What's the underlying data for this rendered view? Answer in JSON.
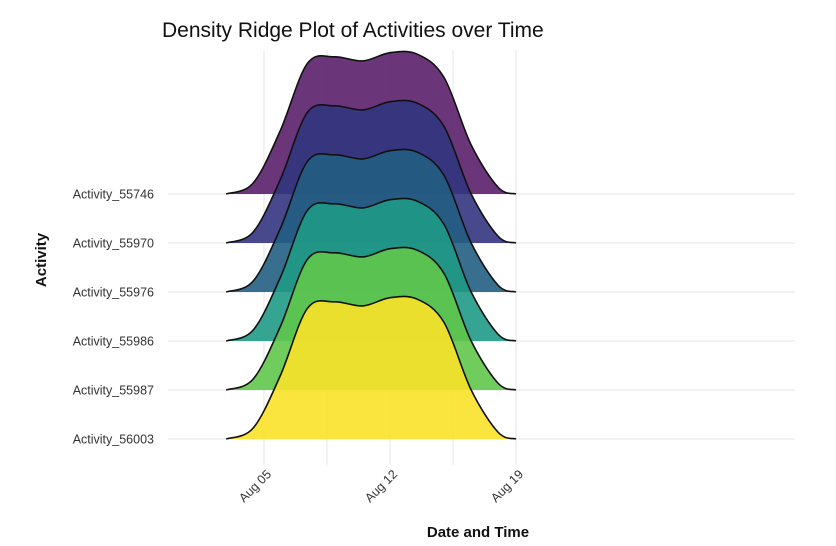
{
  "chart_data": {
    "type": "density-ridge",
    "title": "Density Ridge Plot of Activities over Time",
    "xlabel": "Date and Time",
    "ylabel": "Activity",
    "x_ticks": [
      "Aug 05",
      "Aug 12",
      "Aug 19"
    ],
    "x_tick_values": [
      5,
      12,
      19
    ],
    "xlim": [
      1.3,
      20.0
    ],
    "grid": true,
    "legend": "none",
    "density_x": [
      2.9,
      4.4,
      5.9,
      7.4,
      8.9,
      10.5,
      12.0,
      13.5,
      15.0,
      16.5,
      18.0,
      19.0
    ],
    "density_y": [
      0.0,
      0.08,
      0.46,
      0.95,
      1.0,
      0.97,
      1.03,
      1.02,
      0.85,
      0.36,
      0.05,
      0.0
    ],
    "ridge_height_in_rows": 2.8,
    "series": [
      {
        "name": "Activity_55746",
        "color": "#5b1f6a"
      },
      {
        "name": "Activity_55970",
        "color": "#33357f"
      },
      {
        "name": "Activity_55976",
        "color": "#225e82"
      },
      {
        "name": "Activity_55986",
        "color": "#1f9a86"
      },
      {
        "name": "Activity_55987",
        "color": "#5fc64b"
      },
      {
        "name": "Activity_56003",
        "color": "#f8e228"
      }
    ]
  }
}
